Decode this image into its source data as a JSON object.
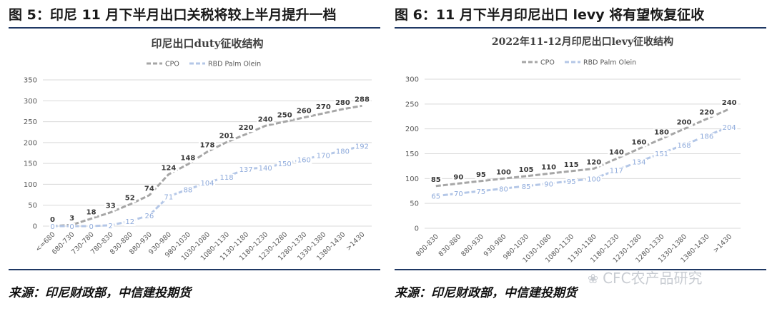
{
  "left": {
    "fig_title": "图 5：印尼 11 月下半月出口关税将较上半月提升一档",
    "source": "来源：印尼财政部，中信建投期货"
  },
  "right": {
    "fig_title": "图 6：11 月下半月印尼出口 levy 将有望恢复征收",
    "source": "来源：印尼财政部，中信建投期货"
  },
  "watermark": "CFC农产品研究",
  "chart_data": [
    {
      "type": "line",
      "title": "印尼出口duty征收结构",
      "legend": "top-center",
      "grid": true,
      "ylim": [
        0,
        350
      ],
      "yticks": [
        0,
        50,
        100,
        150,
        200,
        250,
        300,
        350
      ],
      "categories": [
        "<=680",
        "680-730",
        "730-780",
        "780-830",
        "830-880",
        "880-930",
        "930-980",
        "980-1030",
        "1030-1080",
        "1080-1130",
        "1130-1180",
        "1180-1230",
        "1230-1280",
        "1280-1330",
        "1330-1380",
        "1380-1430",
        ">1430"
      ],
      "series": [
        {
          "name": "CPO",
          "color": "#a6a6a6",
          "label_color": "#3a3a3a",
          "values": [
            0,
            3,
            18,
            33,
            52,
            74,
            124,
            148,
            178,
            201,
            220,
            240,
            250,
            260,
            270,
            280,
            288
          ]
        },
        {
          "name": "RBD Palm Olein",
          "color": "#b4c7e7",
          "label_color": "#8eaadb",
          "values": [
            0,
            0,
            0,
            2,
            12,
            26,
            71,
            88,
            104,
            118,
            137,
            140,
            150,
            160,
            170,
            180,
            192
          ]
        }
      ]
    },
    {
      "type": "line",
      "title": "2022年11-12月印尼出口levy征收结构",
      "legend": "top-center",
      "grid": true,
      "ylim": [
        0,
        300
      ],
      "yticks": [
        0,
        50,
        100,
        150,
        200,
        250,
        300
      ],
      "categories": [
        "800-830",
        "830-880",
        "880-930",
        "930-980",
        "980-1030",
        "1030-1080",
        "1080-1130",
        "1130-1180",
        "1180-1230",
        "1230-1280",
        "1280-1330",
        "1330-1380",
        "1380-1430",
        ">1430"
      ],
      "series": [
        {
          "name": "CPO",
          "color": "#a6a6a6",
          "label_color": "#3a3a3a",
          "values": [
            85,
            90,
            95,
            100,
            105,
            110,
            115,
            120,
            140,
            160,
            180,
            200,
            220,
            240
          ]
        },
        {
          "name": "RBD Palm Olein",
          "color": "#b4c7e7",
          "label_color": "#8eaadb",
          "values": [
            65,
            70,
            75,
            80,
            85,
            90,
            95,
            100,
            117,
            134,
            151,
            168,
            186,
            204
          ]
        }
      ]
    }
  ]
}
